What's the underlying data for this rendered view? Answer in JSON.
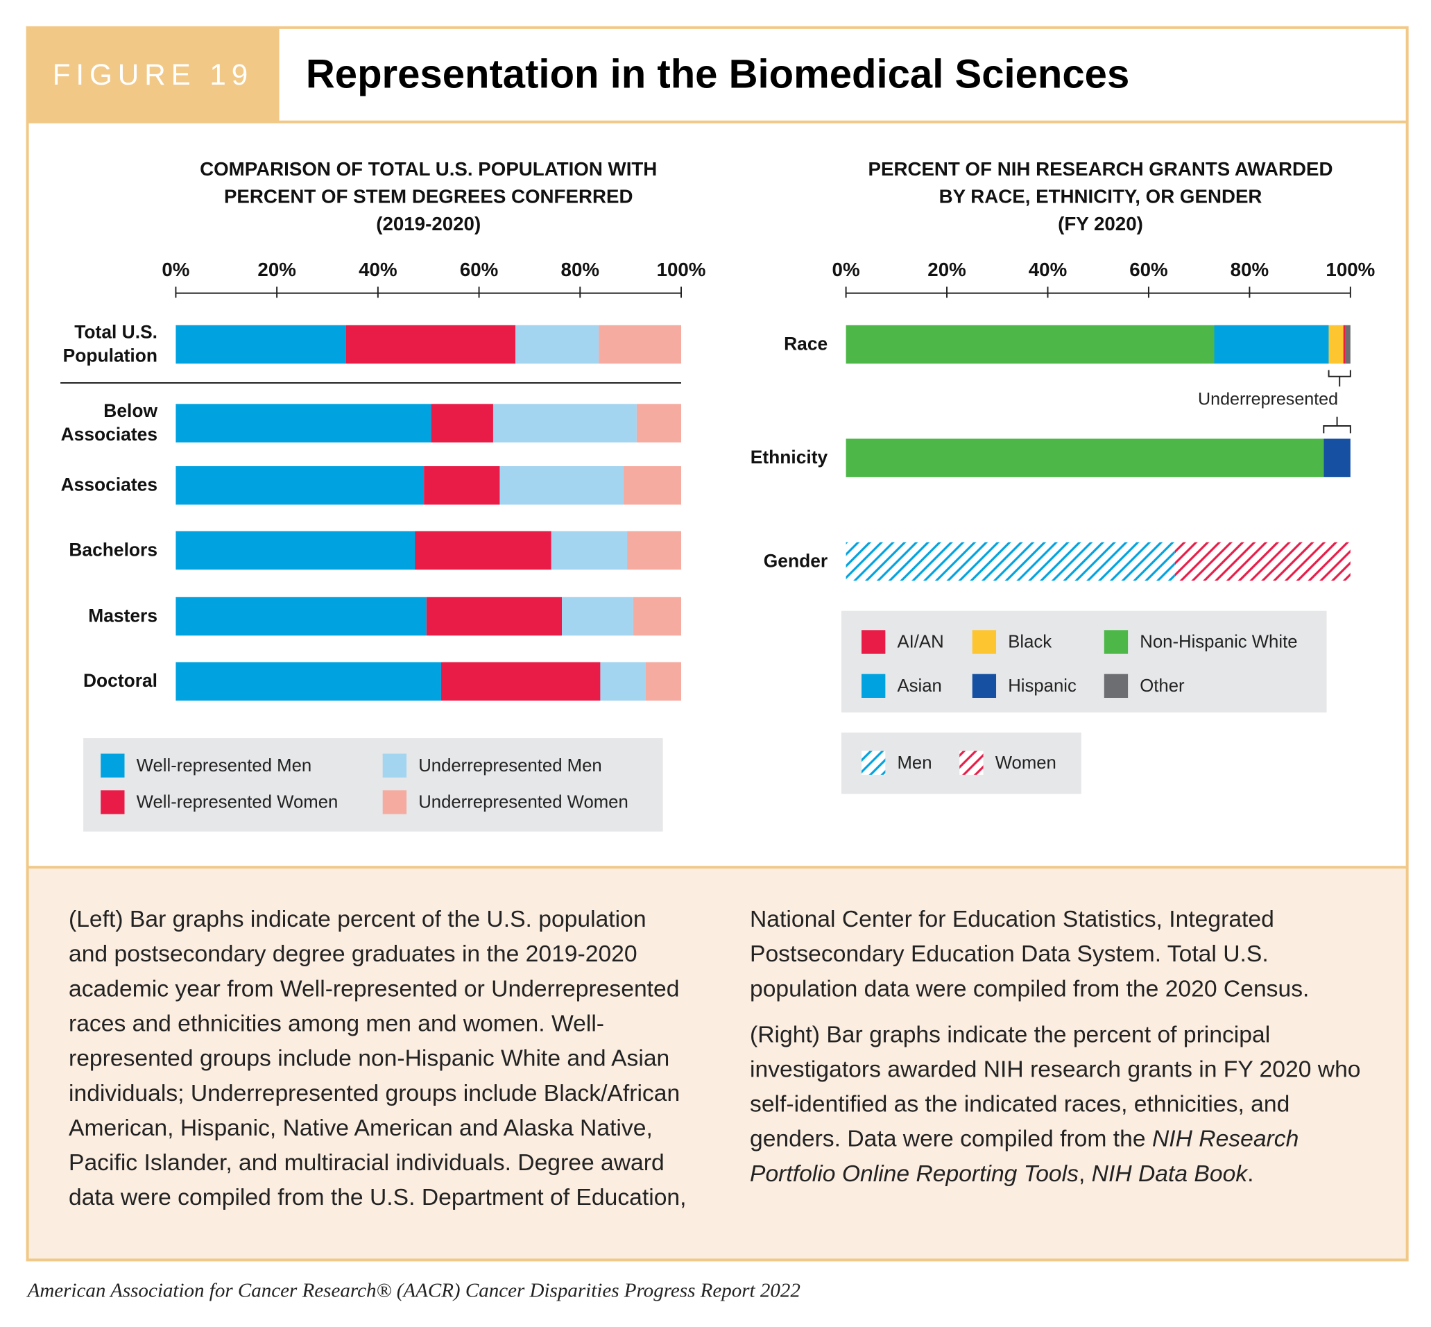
{
  "figure": {
    "label": "FIGURE 19",
    "title": "Representation in the Biomedical Sciences"
  },
  "chart_data": [
    {
      "type": "bar",
      "orientation": "horizontal",
      "stacked": true,
      "title": [
        "COMPARISON OF TOTAL U.S. POPULATION WITH",
        "PERCENT OF STEM DEGREES CONFERRED",
        "(2019-2020)"
      ],
      "categories": [
        "Total U.S. Population",
        "Below Associates",
        "Associates",
        "Bachelors",
        "Masters",
        "Doctoral"
      ],
      "series": [
        {
          "name": "Well-represented Men",
          "color": "#00a3e0",
          "values": [
            33.7,
            50.5,
            49.1,
            47.3,
            49.6,
            52.5
          ]
        },
        {
          "name": "Well-represented Women",
          "color": "#e91c48",
          "values": [
            33.5,
            12.3,
            15.0,
            27.0,
            26.8,
            31.5
          ]
        },
        {
          "name": "Underrepresented Men",
          "color": "#a3d4f0",
          "values": [
            16.5,
            28.4,
            24.5,
            15.0,
            14.1,
            8.9
          ]
        },
        {
          "name": "Underrepresented Women",
          "color": "#f5aba0",
          "values": [
            16.3,
            8.8,
            11.4,
            10.7,
            9.5,
            7.1
          ]
        }
      ],
      "xlim": [
        0,
        100
      ],
      "xticks": [
        {
          "value": 0,
          "label": "0%"
        },
        {
          "value": 20,
          "label": "20%"
        },
        {
          "value": 40,
          "label": "40%"
        },
        {
          "value": 60,
          "label": "60%"
        },
        {
          "value": 80,
          "label": "80%"
        },
        {
          "value": 100,
          "label": "100%"
        }
      ]
    },
    {
      "type": "bar",
      "orientation": "horizontal",
      "stacked": true,
      "title": [
        "PERCENT OF NIH RESEARCH GRANTS AWARDED",
        "BY RACE, ETHNICITY, OR GENDER",
        "(FY 2020)"
      ],
      "categories": [
        "Race",
        "Ethnicity",
        "Gender"
      ],
      "series": [
        {
          "name": "Non-Hispanic White",
          "color": "#4db848",
          "values": [
            73.0,
            94.7,
            null
          ]
        },
        {
          "name": "Asian",
          "color": "#00a3e0",
          "values": [
            22.7,
            null,
            null
          ]
        },
        {
          "name": "Black",
          "color": "#fdc52f",
          "values": [
            2.9,
            null,
            null
          ]
        },
        {
          "name": "AI/AN",
          "color": "#e91c48",
          "values": [
            0.4,
            null,
            null
          ]
        },
        {
          "name": "Other",
          "color": "#6d6e71",
          "values": [
            1.0,
            null,
            null
          ]
        },
        {
          "name": "Hispanic",
          "color": "#1650a3",
          "values": [
            null,
            5.3,
            null
          ]
        },
        {
          "name": "Men",
          "color": "#00a3e0",
          "pattern": "hatch",
          "values": [
            null,
            null,
            65.2
          ]
        },
        {
          "name": "Women",
          "color": "#e91c48",
          "pattern": "hatch",
          "values": [
            null,
            null,
            34.8
          ]
        }
      ],
      "annotation": "Underrepresented",
      "xlim": [
        0,
        100
      ],
      "xticks": [
        {
          "value": 0,
          "label": "0%"
        },
        {
          "value": 20,
          "label": "20%"
        },
        {
          "value": 40,
          "label": "40%"
        },
        {
          "value": 60,
          "label": "60%"
        },
        {
          "value": 80,
          "label": "80%"
        },
        {
          "value": 100,
          "label": "100%"
        }
      ]
    }
  ],
  "caption": {
    "paragraph_1": "(Left) Bar graphs indicate percent of the U.S. population and postsecondary degree graduates in the 2019-2020 academic year from Well-represented or Underrepresented races and ethnicities among men and women. Well-represented groups include non-Hispanic White and Asian individuals; Underrepresented groups include Black/African American, Hispanic, Native American and Alaska Native, Pacific Islander, and multiracial individuals. Degree award data were compiled from the U.S. Department of Education, National Center for Education Statistics, Integrated Postsecondary Education Data System. Total U.S. population data were compiled from the 2020 Census.",
    "paragraph_2": [
      "(Right) Bar graphs indicate the percent of principal investigators awarded NIH research grants in FY 2020 who self-identified as the indicated races, ethnicities, and genders. Data were compiled from the ",
      "NIH Research Portfolio Online Reporting Tools",
      ", ",
      "NIH Data Book",
      "."
    ]
  },
  "footer": "American Association for Cancer Research® (AACR) Cancer Disparities Progress Report 2022"
}
